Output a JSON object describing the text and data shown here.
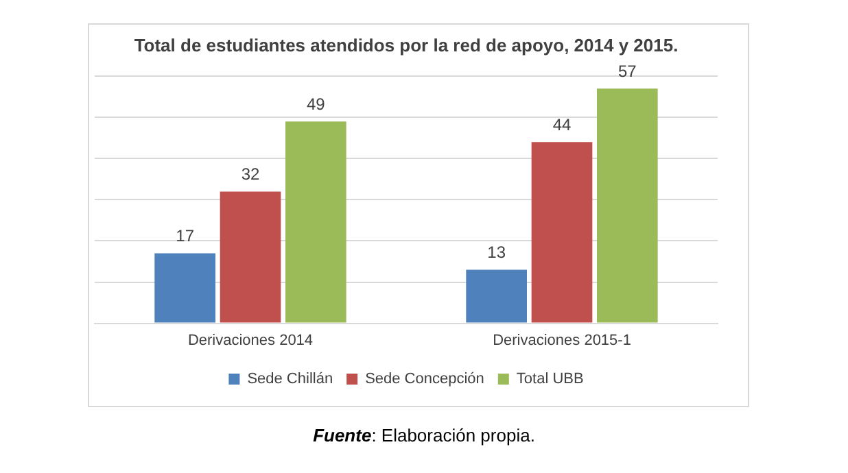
{
  "chart_data": {
    "type": "bar",
    "title": "Total de estudiantes atendidos por la red de apoyo, 2014 y 2015.",
    "categories": [
      "Derivaciones 2014",
      "Derivaciones 2015-1"
    ],
    "series": [
      {
        "name": "Sede Chillán",
        "color": "#4f81bd",
        "values": [
          17,
          13
        ]
      },
      {
        "name": "Sede Concepción",
        "color": "#c0504d",
        "values": [
          32,
          44
        ]
      },
      {
        "name": "Total UBB",
        "color": "#9bbb59",
        "values": [
          49,
          57
        ]
      }
    ],
    "ylim": [
      0,
      60
    ],
    "yticks": [
      {
        "value": 0,
        "label": null
      },
      {
        "value": 10,
        "label": null
      },
      {
        "value": 20,
        "label": null
      },
      {
        "value": 30,
        "label": null
      },
      {
        "value": 40,
        "label": null
      },
      {
        "value": 50,
        "label": null
      },
      {
        "value": 60,
        "label": null
      }
    ],
    "tick_labels": "x",
    "grid": "y",
    "legend": "bottom",
    "data_labels": true,
    "annotations": [
      "Fuente: Elaboración propia."
    ]
  }
}
